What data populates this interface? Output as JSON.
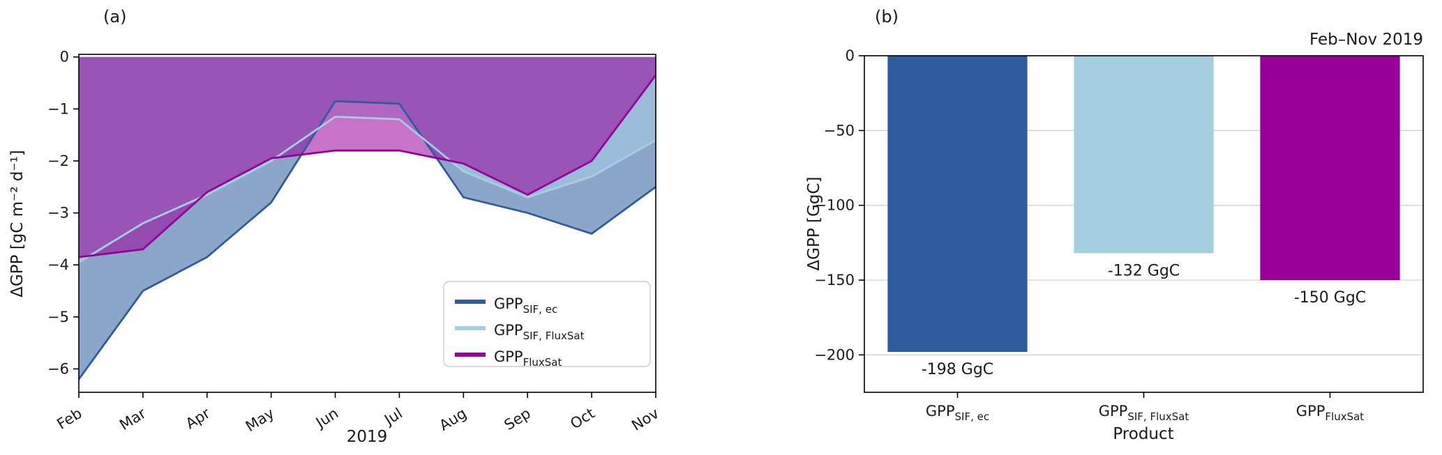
{
  "figure": {
    "background": "#ffffff"
  },
  "panels": {
    "a": {
      "label": "(a)"
    },
    "b": {
      "label": "(b)"
    }
  },
  "legend": {
    "position": "lower right"
  },
  "chart_data": [
    {
      "id": "monthly-delta-gpp",
      "type": "area",
      "title": "",
      "xlabel": "2019",
      "ylabel": "ΔGPP [gC m⁻² d⁻¹]",
      "x": [
        "Feb",
        "Mar",
        "Apr",
        "May",
        "Jun",
        "Jul",
        "Aug",
        "Sep",
        "Oct",
        "Nov"
      ],
      "ylim": [
        -6.45,
        0.05
      ],
      "yticks": [
        0,
        -1,
        -2,
        -3,
        -4,
        -5,
        -6
      ],
      "fill_opacity": 0.55,
      "grid": false,
      "series": [
        {
          "name": "GPP_SIF,ec",
          "main": "GPP",
          "sub": "SIF, ec",
          "color": "#2e5c9e",
          "values": [
            -6.2,
            -4.5,
            -3.85,
            -2.8,
            -0.85,
            -0.9,
            -2.7,
            -3.0,
            -3.4,
            -2.5
          ]
        },
        {
          "name": "GPP_SIF,FluxSat",
          "main": "GPP",
          "sub": "SIF, FluxSat",
          "color": "#a6cee3",
          "values": [
            -3.95,
            -3.2,
            -2.65,
            -2.0,
            -1.15,
            -1.2,
            -2.2,
            -2.7,
            -2.3,
            -1.6
          ]
        },
        {
          "name": "GPP_FluxSat",
          "main": "GPP",
          "sub": "FluxSat",
          "color": "#990099",
          "values": [
            -3.85,
            -3.7,
            -2.6,
            -1.95,
            -1.8,
            -1.8,
            -2.05,
            -2.65,
            -2.0,
            -0.35
          ]
        }
      ]
    },
    {
      "id": "total-delta-gpp",
      "type": "bar",
      "title": "Feb–Nov 2019",
      "xlabel": "Product",
      "ylabel": "ΔGPP [GgC]",
      "categories": [
        {
          "name": "GPP_SIF,ec",
          "main": "GPP",
          "sub": "SIF, ec"
        },
        {
          "name": "GPP_SIF,FluxSat",
          "main": "GPP",
          "sub": "SIF, FluxSat"
        },
        {
          "name": "GPP_FluxSat",
          "main": "GPP",
          "sub": "FluxSat"
        }
      ],
      "values": [
        -198,
        -132,
        -150
      ],
      "labels": [
        "-198 GgC",
        "-132 GgC",
        "-150 GgC"
      ],
      "colors": [
        "#2e5c9e",
        "#a6cee3",
        "#990099"
      ],
      "ylim": [
        -225,
        0
      ],
      "yticks": [
        0,
        -50,
        -100,
        -150,
        -200
      ],
      "grid": true,
      "grid_color": "#d0d0d0",
      "bar_width_frac": 0.75
    }
  ]
}
